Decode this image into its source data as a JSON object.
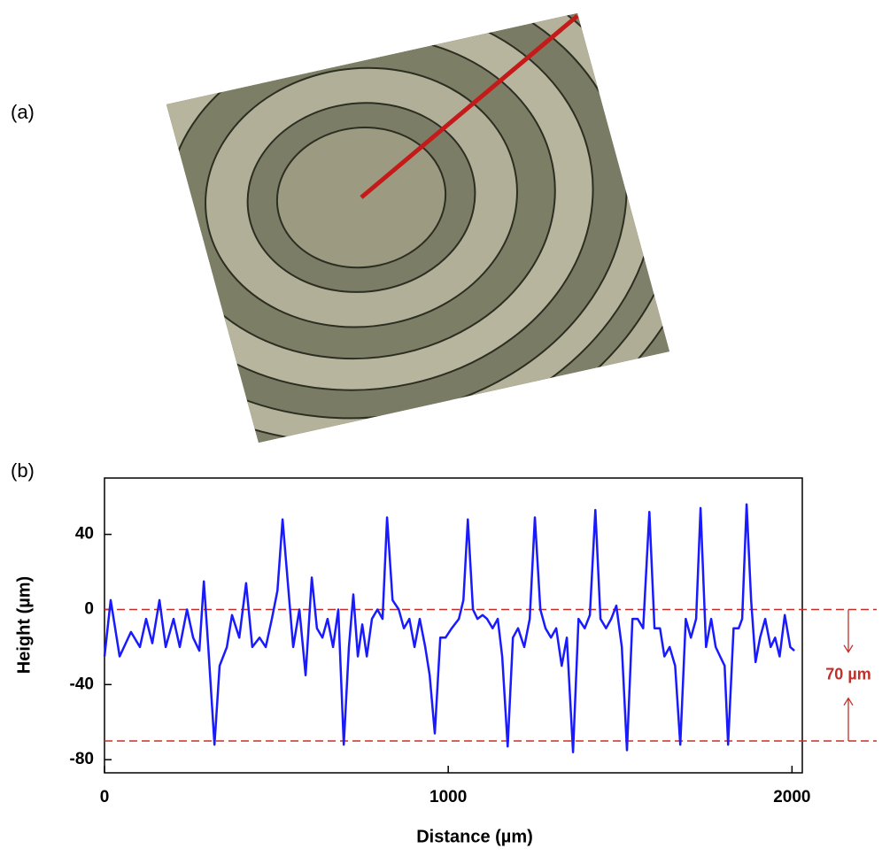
{
  "panels": [
    "(a)",
    "(b)"
  ],
  "chart_data": {
    "type": "line",
    "xlabel": "Distance (µm)",
    "ylabel": "Height (µm)",
    "xlim": [
      0,
      2030
    ],
    "ylim": [
      -87,
      70
    ],
    "xticks": [
      0,
      1000,
      2000
    ],
    "yticks": [
      40,
      0,
      -40,
      -80
    ],
    "reference_lines": [
      0,
      -70
    ],
    "reference_color": "#c0302a",
    "annotation": "70 µm",
    "x": [
      0,
      18,
      44,
      77,
      103,
      121,
      139,
      160,
      178,
      201,
      219,
      240,
      258,
      276,
      289,
      302,
      320,
      335,
      356,
      371,
      392,
      412,
      430,
      451,
      469,
      487,
      503,
      518,
      533,
      549,
      567,
      585,
      603,
      618,
      634,
      649,
      665,
      680,
      696,
      711,
      724,
      737,
      750,
      763,
      778,
      794,
      809,
      822,
      838,
      856,
      871,
      887,
      902,
      917,
      933,
      946,
      961,
      977,
      992,
      1010,
      1031,
      1044,
      1057,
      1072,
      1085,
      1100,
      1113,
      1129,
      1144,
      1157,
      1173,
      1188,
      1203,
      1221,
      1237,
      1252,
      1268,
      1283,
      1299,
      1314,
      1330,
      1345,
      1363,
      1379,
      1397,
      1412,
      1428,
      1443,
      1459,
      1474,
      1489,
      1505,
      1520,
      1536,
      1551,
      1567,
      1585,
      1600,
      1616,
      1629,
      1644,
      1660,
      1675,
      1691,
      1706,
      1721,
      1734,
      1750,
      1765,
      1778,
      1791,
      1804,
      1814,
      1830,
      1845,
      1855,
      1868,
      1881,
      1894,
      1907,
      1922,
      1938,
      1951,
      1964,
      1979,
      1995,
      2007
    ],
    "series": [
      {
        "color": "#1a1aff",
        "values": [
          -25,
          5,
          -25,
          -12,
          -20,
          -5,
          -18,
          5,
          -20,
          -5,
          -20,
          0,
          -15,
          -22,
          15,
          -20,
          -72,
          -30,
          -20,
          -3,
          -15,
          14,
          -20,
          -15,
          -20,
          -5,
          10,
          48,
          15,
          -20,
          0,
          -35,
          17,
          -10,
          -15,
          -5,
          -20,
          0,
          -72,
          -20,
          8,
          -25,
          -8,
          -25,
          -5,
          0,
          -5,
          49,
          5,
          0,
          -10,
          -5,
          -20,
          -5,
          -20,
          -35,
          -66,
          -15,
          -15,
          -10,
          -5,
          5,
          48,
          0,
          -5,
          -3,
          -5,
          -10,
          -5,
          -25,
          -73,
          -15,
          -10,
          -20,
          -5,
          49,
          0,
          -10,
          -15,
          -10,
          -30,
          -15,
          -76,
          -5,
          -10,
          -3,
          53,
          -5,
          -10,
          -5,
          2,
          -20,
          -75,
          -5,
          -5,
          -10,
          52,
          -10,
          -10,
          -25,
          -20,
          -30,
          -72,
          -5,
          -15,
          -5,
          54,
          -20,
          -5,
          -20,
          -25,
          -30,
          -72,
          -10,
          -10,
          -5,
          56,
          5,
          -28,
          -15,
          -5,
          -20,
          -15,
          -25,
          -3,
          -20,
          -22
        ]
      }
    ]
  }
}
